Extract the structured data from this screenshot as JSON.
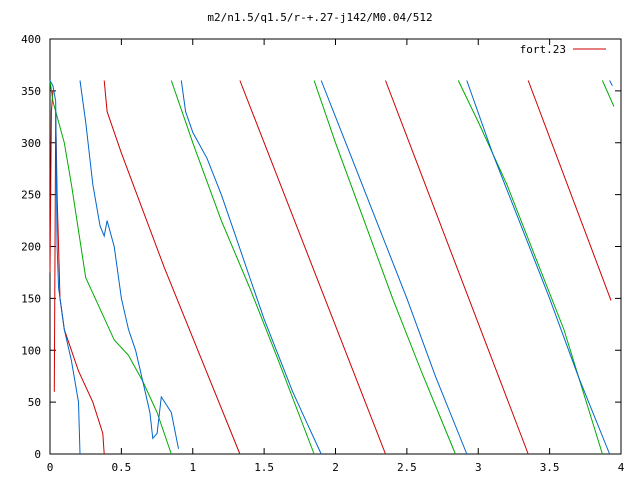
{
  "chart_data": {
    "type": "line",
    "title": "m2/n1.5/q1.5/r-+.27-j142/M0.04/512",
    "xlabel": "",
    "ylabel": "",
    "xlim": [
      0,
      4
    ],
    "ylim": [
      0,
      400
    ],
    "x_ticks": [
      0,
      0.5,
      1,
      1.5,
      2,
      2.5,
      3,
      3.5,
      4
    ],
    "x_tick_labels": [
      "0",
      "0.5",
      "1",
      "1.5",
      "2",
      "2.5",
      "3",
      "3.5",
      "4"
    ],
    "y_ticks": [
      0,
      50,
      100,
      150,
      200,
      250,
      300,
      350,
      400
    ],
    "y_tick_labels": [
      "0",
      "50",
      "100",
      "150",
      "200",
      "250",
      "300",
      "350",
      "400"
    ],
    "grid": false,
    "legend_position": "top-right",
    "legend": [
      {
        "label": "fort.23",
        "color": "#cc0000"
      }
    ],
    "series": [
      {
        "name": "fort.23",
        "color": "#cc0000",
        "segments": [
          [
            [
              0.0,
              175
            ],
            [
              0.01,
              330
            ],
            [
              0.02,
              350
            ]
          ],
          [
            [
              0.03,
              60
            ],
            [
              0.04,
              330
            ],
            [
              0.05,
              250
            ],
            [
              0.07,
              150
            ],
            [
              0.1,
              120
            ],
            [
              0.15,
              100
            ],
            [
              0.2,
              80
            ],
            [
              0.3,
              50
            ],
            [
              0.37,
              20
            ],
            [
              0.38,
              0
            ]
          ],
          [
            [
              0.38,
              360
            ],
            [
              0.4,
              330
            ],
            [
              0.5,
              290
            ],
            [
              0.8,
              180
            ],
            [
              1.33,
              0
            ]
          ],
          [
            [
              1.33,
              360
            ],
            [
              2.35,
              0
            ]
          ],
          [
            [
              2.35,
              360
            ],
            [
              3.35,
              0
            ]
          ],
          [
            [
              3.35,
              360
            ],
            [
              3.93,
              148
            ]
          ]
        ]
      },
      {
        "name": "",
        "color": "#00aa00",
        "segments": [
          [
            [
              0.0,
              360
            ],
            [
              0.02,
              340
            ],
            [
              0.06,
              320
            ],
            [
              0.1,
              300
            ],
            [
              0.15,
              260
            ],
            [
              0.25,
              170
            ],
            [
              0.35,
              140
            ],
            [
              0.45,
              110
            ],
            [
              0.55,
              95
            ],
            [
              0.65,
              70
            ],
            [
              0.75,
              40
            ],
            [
              0.85,
              0
            ]
          ],
          [
            [
              0.85,
              360
            ],
            [
              1.0,
              300
            ],
            [
              1.2,
              225
            ],
            [
              1.4,
              160
            ],
            [
              1.6,
              90
            ],
            [
              1.85,
              0
            ]
          ],
          [
            [
              1.85,
              360
            ],
            [
              2.0,
              300
            ],
            [
              2.2,
              225
            ],
            [
              2.4,
              150
            ],
            [
              2.6,
              80
            ],
            [
              2.84,
              0
            ]
          ],
          [
            [
              2.86,
              360
            ],
            [
              3.0,
              320
            ],
            [
              3.2,
              260
            ],
            [
              3.4,
              190
            ],
            [
              3.6,
              120
            ],
            [
              3.87,
              0
            ]
          ],
          [
            [
              3.87,
              360
            ],
            [
              3.95,
              335
            ]
          ]
        ]
      },
      {
        "name": "",
        "color": "#0066cc",
        "segments": [
          [
            [
              0.0,
              360
            ],
            [
              0.02,
              355
            ],
            [
              0.04,
              340
            ],
            [
              0.05,
              200
            ],
            [
              0.06,
              160
            ],
            [
              0.1,
              120
            ],
            [
              0.15,
              90
            ],
            [
              0.2,
              50
            ],
            [
              0.21,
              0
            ]
          ],
          [
            [
              0.21,
              360
            ],
            [
              0.25,
              320
            ],
            [
              0.3,
              260
            ],
            [
              0.35,
              220
            ],
            [
              0.38,
              210
            ],
            [
              0.4,
              225
            ],
            [
              0.45,
              200
            ],
            [
              0.5,
              150
            ],
            [
              0.55,
              120
            ],
            [
              0.6,
              100
            ],
            [
              0.65,
              70
            ],
            [
              0.7,
              40
            ],
            [
              0.72,
              15
            ],
            [
              0.75,
              20
            ],
            [
              0.78,
              55
            ],
            [
              0.85,
              40
            ],
            [
              0.9,
              5
            ]
          ],
          [
            [
              0.92,
              360
            ],
            [
              0.95,
              330
            ],
            [
              1.0,
              310
            ],
            [
              1.1,
              285
            ],
            [
              1.2,
              250
            ],
            [
              1.3,
              210
            ],
            [
              1.4,
              170
            ],
            [
              1.5,
              130
            ],
            [
              1.6,
              95
            ],
            [
              1.7,
              60
            ],
            [
              1.8,
              30
            ],
            [
              1.9,
              0
            ]
          ],
          [
            [
              1.9,
              360
            ],
            [
              2.1,
              290
            ],
            [
              2.3,
              220
            ],
            [
              2.5,
              150
            ],
            [
              2.7,
              75
            ],
            [
              2.92,
              0
            ]
          ],
          [
            [
              2.92,
              360
            ],
            [
              3.1,
              290
            ],
            [
              3.3,
              220
            ],
            [
              3.5,
              150
            ],
            [
              3.7,
              75
            ],
            [
              3.92,
              0
            ]
          ],
          [
            [
              3.92,
              360
            ],
            [
              3.94,
              355
            ]
          ]
        ]
      }
    ]
  }
}
